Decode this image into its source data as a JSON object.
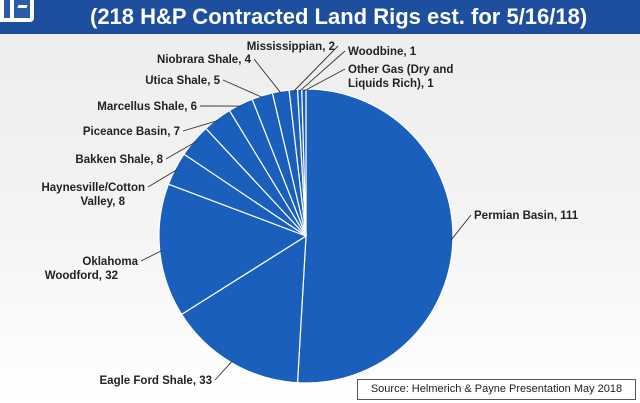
{
  "header": {
    "title": "(218 H&P Contracted Land Rigs est. for 5/16/18)"
  },
  "colors": {
    "header_bg": "#1d4f9e",
    "slice_fill": "#1a5fbc",
    "slice_edge": "#ffffff"
  },
  "logo": {
    "icon": "company-logo-icon"
  },
  "chart_data": {
    "type": "pie",
    "slices": [
      {
        "label": "Permian Basin, 111",
        "value": 111
      },
      {
        "label": "Eagle Ford Shale, 33",
        "value": 33
      },
      {
        "label": "Oklahoma Woodford, 32",
        "value": 32
      },
      {
        "label": "Haynesville/Cotton Valley, 8",
        "value": 8
      },
      {
        "label": "Bakken Shale, 8",
        "value": 8
      },
      {
        "label": "Piceance Basin, 7",
        "value": 7
      },
      {
        "label": "Marcellus Shale, 6",
        "value": 6
      },
      {
        "label": "Utica Shale, 5",
        "value": 5
      },
      {
        "label": "Niobrara Shale, 4",
        "value": 4
      },
      {
        "label": "Mississippian, 2",
        "value": 2
      },
      {
        "label": "Woodbine, 1",
        "value": 1
      },
      {
        "label": "Other Gas (Dry and Liquids Rich), 1",
        "value": 1
      }
    ]
  },
  "source": {
    "text": "Source: Helmerich & Payne Presentation May 2018"
  }
}
